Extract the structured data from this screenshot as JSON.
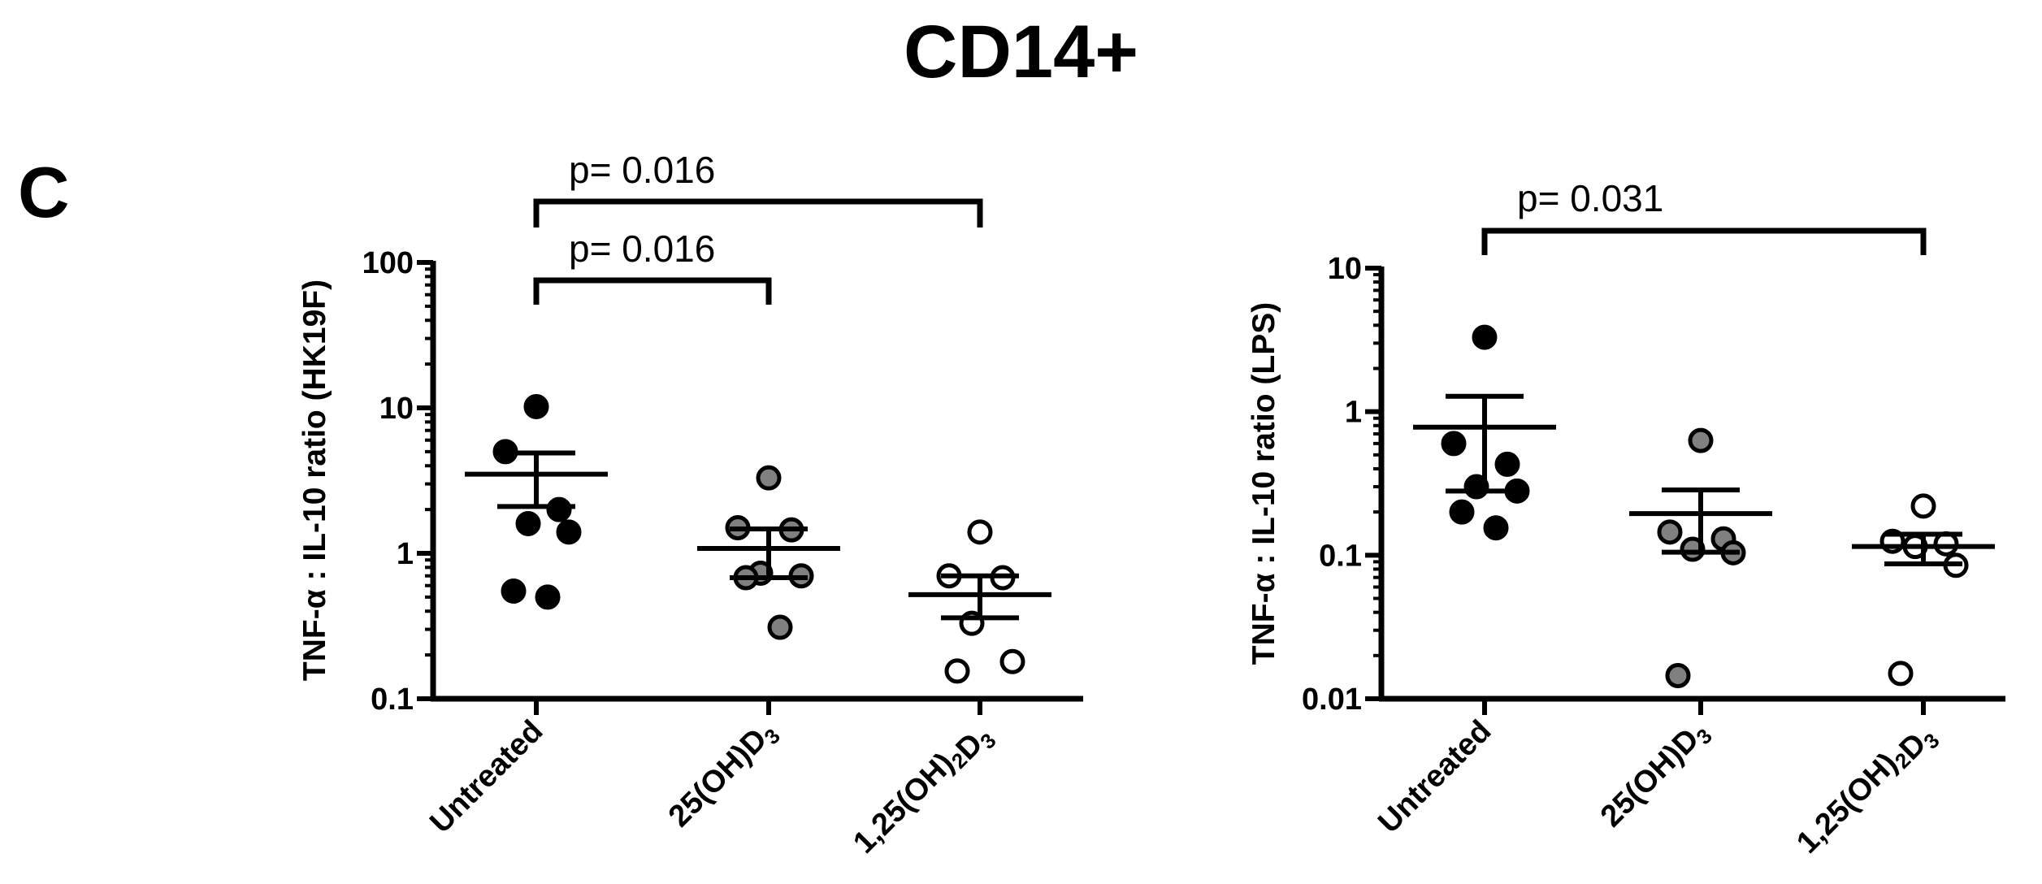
{
  "figure": {
    "title": "CD14+",
    "panel_label": "C"
  },
  "colors": {
    "untreated": "#000000",
    "calcidiol": "#808080",
    "calcitriol": "#ffffff",
    "stroke": "#000000"
  },
  "chart_data": [
    {
      "type": "scatter",
      "ylabel": "TNF-α : IL-10 ratio (HK19F)",
      "yscale": "log",
      "ylim": [
        0.1,
        100
      ],
      "yticks": [
        "0.1",
        "1",
        "10",
        "100"
      ],
      "categories": [
        "Untreated",
        "25(OH)D3",
        "1,25(OH)2D3"
      ],
      "groups": [
        {
          "name": "Untreated",
          "values": [
            10.2,
            5.0,
            2.0,
            1.6,
            1.4,
            0.55,
            0.5
          ],
          "mean": 3.5,
          "sem_low": 2.1,
          "sem_high": 4.9
        },
        {
          "name": "25(OH)D3",
          "values": [
            3.3,
            1.5,
            1.45,
            0.73,
            0.7,
            0.68,
            0.31
          ],
          "mean": 1.08,
          "sem_low": 0.68,
          "sem_high": 1.47
        },
        {
          "name": "1,25(OH)2D3",
          "values": [
            1.4,
            0.7,
            0.68,
            0.33,
            0.18,
            0.155
          ],
          "mean": 0.52,
          "sem_low": 0.36,
          "sem_high": 0.7
        }
      ],
      "significance": [
        {
          "from": "Untreated",
          "to": "1,25(OH)2D3",
          "label": "p= 0.016",
          "level": 2
        },
        {
          "from": "Untreated",
          "to": "25(OH)D3",
          "label": "p= 0.016",
          "level": 1
        }
      ]
    },
    {
      "type": "scatter",
      "ylabel": "TNF-α : IL-10 ratio (LPS)",
      "yscale": "log",
      "ylim": [
        0.01,
        10
      ],
      "yticks": [
        "0.01",
        "0.1",
        "1",
        "10"
      ],
      "categories": [
        "Untreated",
        "25(OH)D3",
        "1,25(OH)2D3"
      ],
      "groups": [
        {
          "name": "Untreated",
          "values": [
            3.3,
            0.6,
            0.43,
            0.3,
            0.28,
            0.2,
            0.155
          ],
          "mean": 0.78,
          "sem_low": 0.28,
          "sem_high": 1.28
        },
        {
          "name": "25(OH)D3",
          "values": [
            0.63,
            0.145,
            0.13,
            0.11,
            0.104,
            0.0145
          ],
          "mean": 0.195,
          "sem_low": 0.105,
          "sem_high": 0.285
        },
        {
          "name": "1,25(OH)2D3",
          "values": [
            0.22,
            0.125,
            0.12,
            0.115,
            0.085,
            0.015
          ],
          "mean": 0.115,
          "sem_low": 0.087,
          "sem_high": 0.14
        }
      ],
      "significance": [
        {
          "from": "Untreated",
          "to": "1,25(OH)2D3",
          "label": "p= 0.031",
          "level": 1
        }
      ]
    }
  ]
}
